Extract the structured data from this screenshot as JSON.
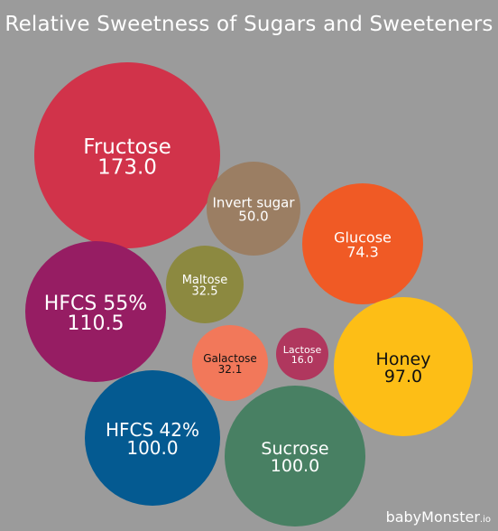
{
  "chart_data": {
    "type": "bubble",
    "title": "Relative Sweetness of Sugars and Sweeteners",
    "items": [
      {
        "name": "Fructose",
        "value": "173.0",
        "color": "#d1334a",
        "text_color": "#ffffff"
      },
      {
        "name": "Invert sugar",
        "value": "50.0",
        "color": "#9b7e63",
        "text_color": "#ffffff"
      },
      {
        "name": "Glucose",
        "value": "74.3",
        "color": "#f05a25",
        "text_color": "#ffffff"
      },
      {
        "name": "HFCS 55%",
        "value": "110.5",
        "color": "#961d63",
        "text_color": "#ffffff"
      },
      {
        "name": "Maltose",
        "value": "32.5",
        "color": "#8c8940",
        "text_color": "#ffffff"
      },
      {
        "name": "Galactose",
        "value": "32.1",
        "color": "#f2785a",
        "text_color": "#111111"
      },
      {
        "name": "Lactose",
        "value": "16.0",
        "color": "#b0375e",
        "text_color": "#ffffff"
      },
      {
        "name": "Honey",
        "value": "97.0",
        "color": "#fdbe16",
        "text_color": "#111111"
      },
      {
        "name": "HFCS 42%",
        "value": "100.0",
        "color": "#045a91",
        "text_color": "#ffffff"
      },
      {
        "name": "Sucrose",
        "value": "100.0",
        "color": "#488063",
        "text_color": "#ffffff"
      }
    ]
  },
  "watermark": {
    "brand": "babyMonster",
    "tld": ".io"
  }
}
